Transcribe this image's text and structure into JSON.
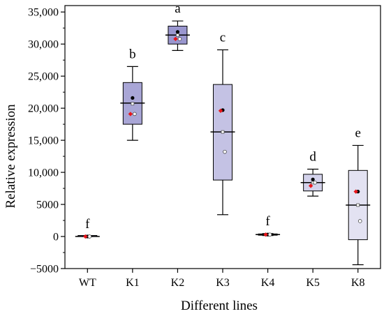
{
  "chart_data": {
    "type": "box",
    "xlabel": "Different lines",
    "ylabel": "Relative expression",
    "ylim": [
      -5000,
      36000
    ],
    "y_ticks": [
      -5000,
      0,
      5000,
      10000,
      15000,
      20000,
      25000,
      30000,
      35000
    ],
    "y_tick_labels": [
      "−5000",
      "0",
      "5000",
      "10,000",
      "15,000",
      "20,000",
      "25,000",
      "30,000",
      "35,000"
    ],
    "categories": [
      "WT",
      "K1",
      "K2",
      "K3",
      "K4",
      "K5",
      "K8"
    ],
    "boxes": [
      {
        "category": "WT",
        "whisker_low": 0,
        "q1": 0,
        "median": 0,
        "q3": 0,
        "whisker_high": 0,
        "mean": 0,
        "points": [
          {
            "value": 0,
            "style": "black"
          },
          {
            "value": 0,
            "style": "red"
          },
          {
            "value": 0,
            "style": "open"
          }
        ],
        "letter": "f"
      },
      {
        "category": "K1",
        "whisker_low": 15000,
        "q1": 17500,
        "median": 20800,
        "q3": 24000,
        "whisker_high": 26500,
        "mean": 20700,
        "points": [
          {
            "value": 21600,
            "style": "black"
          },
          {
            "value": 19100,
            "style": "red"
          },
          {
            "value": 19100,
            "style": "open"
          }
        ],
        "letter": "b"
      },
      {
        "category": "K2",
        "whisker_low": 29000,
        "q1": 30000,
        "median": 31400,
        "q3": 32800,
        "whisker_high": 33600,
        "mean": 31400,
        "points": [
          {
            "value": 31900,
            "style": "black"
          },
          {
            "value": 30800,
            "style": "red"
          },
          {
            "value": 30800,
            "style": "open"
          }
        ],
        "letter": "a"
      },
      {
        "category": "K3",
        "whisker_low": 3400,
        "q1": 8800,
        "median": 16300,
        "q3": 23700,
        "whisker_high": 29100,
        "mean": 16300,
        "points": [
          {
            "value": 19700,
            "style": "black"
          },
          {
            "value": 19600,
            "style": "red"
          },
          {
            "value": 13200,
            "style": "open"
          }
        ],
        "letter": "c"
      },
      {
        "category": "K4",
        "whisker_low": 150,
        "q1": 200,
        "median": 300,
        "q3": 400,
        "whisker_high": 450,
        "mean": 300,
        "points": [
          {
            "value": 300,
            "style": "black"
          },
          {
            "value": 300,
            "style": "red"
          },
          {
            "value": 300,
            "style": "open"
          }
        ],
        "letter": "f"
      },
      {
        "category": "K5",
        "whisker_low": 6300,
        "q1": 7100,
        "median": 8400,
        "q3": 9700,
        "whisker_high": 10500,
        "mean": 8400,
        "points": [
          {
            "value": 8900,
            "style": "black"
          },
          {
            "value": 7900,
            "style": "red"
          },
          {
            "value": 8400,
            "style": "open"
          }
        ],
        "letter": "d"
      },
      {
        "category": "K8",
        "whisker_low": -4400,
        "q1": -500,
        "median": 4900,
        "q3": 10300,
        "whisker_high": 14200,
        "mean": 4900,
        "points": [
          {
            "value": 7000,
            "style": "black"
          },
          {
            "value": 7000,
            "style": "red"
          },
          {
            "value": 2400,
            "style": "open"
          }
        ],
        "letter": "e"
      }
    ],
    "box_colors": {
      "WT": "#b9b7dd",
      "K1": "#a9a6d6",
      "K2": "#9a97cf",
      "K3": "#c4c2e4",
      "K4": "#bdbbe0",
      "K5": "#d3d2eb",
      "K8": "#e3e2f2"
    },
    "marker_colors": {
      "black": "#000000",
      "red": "#e8161b",
      "open": "#ffffff"
    },
    "grid": false,
    "legend": "none"
  }
}
